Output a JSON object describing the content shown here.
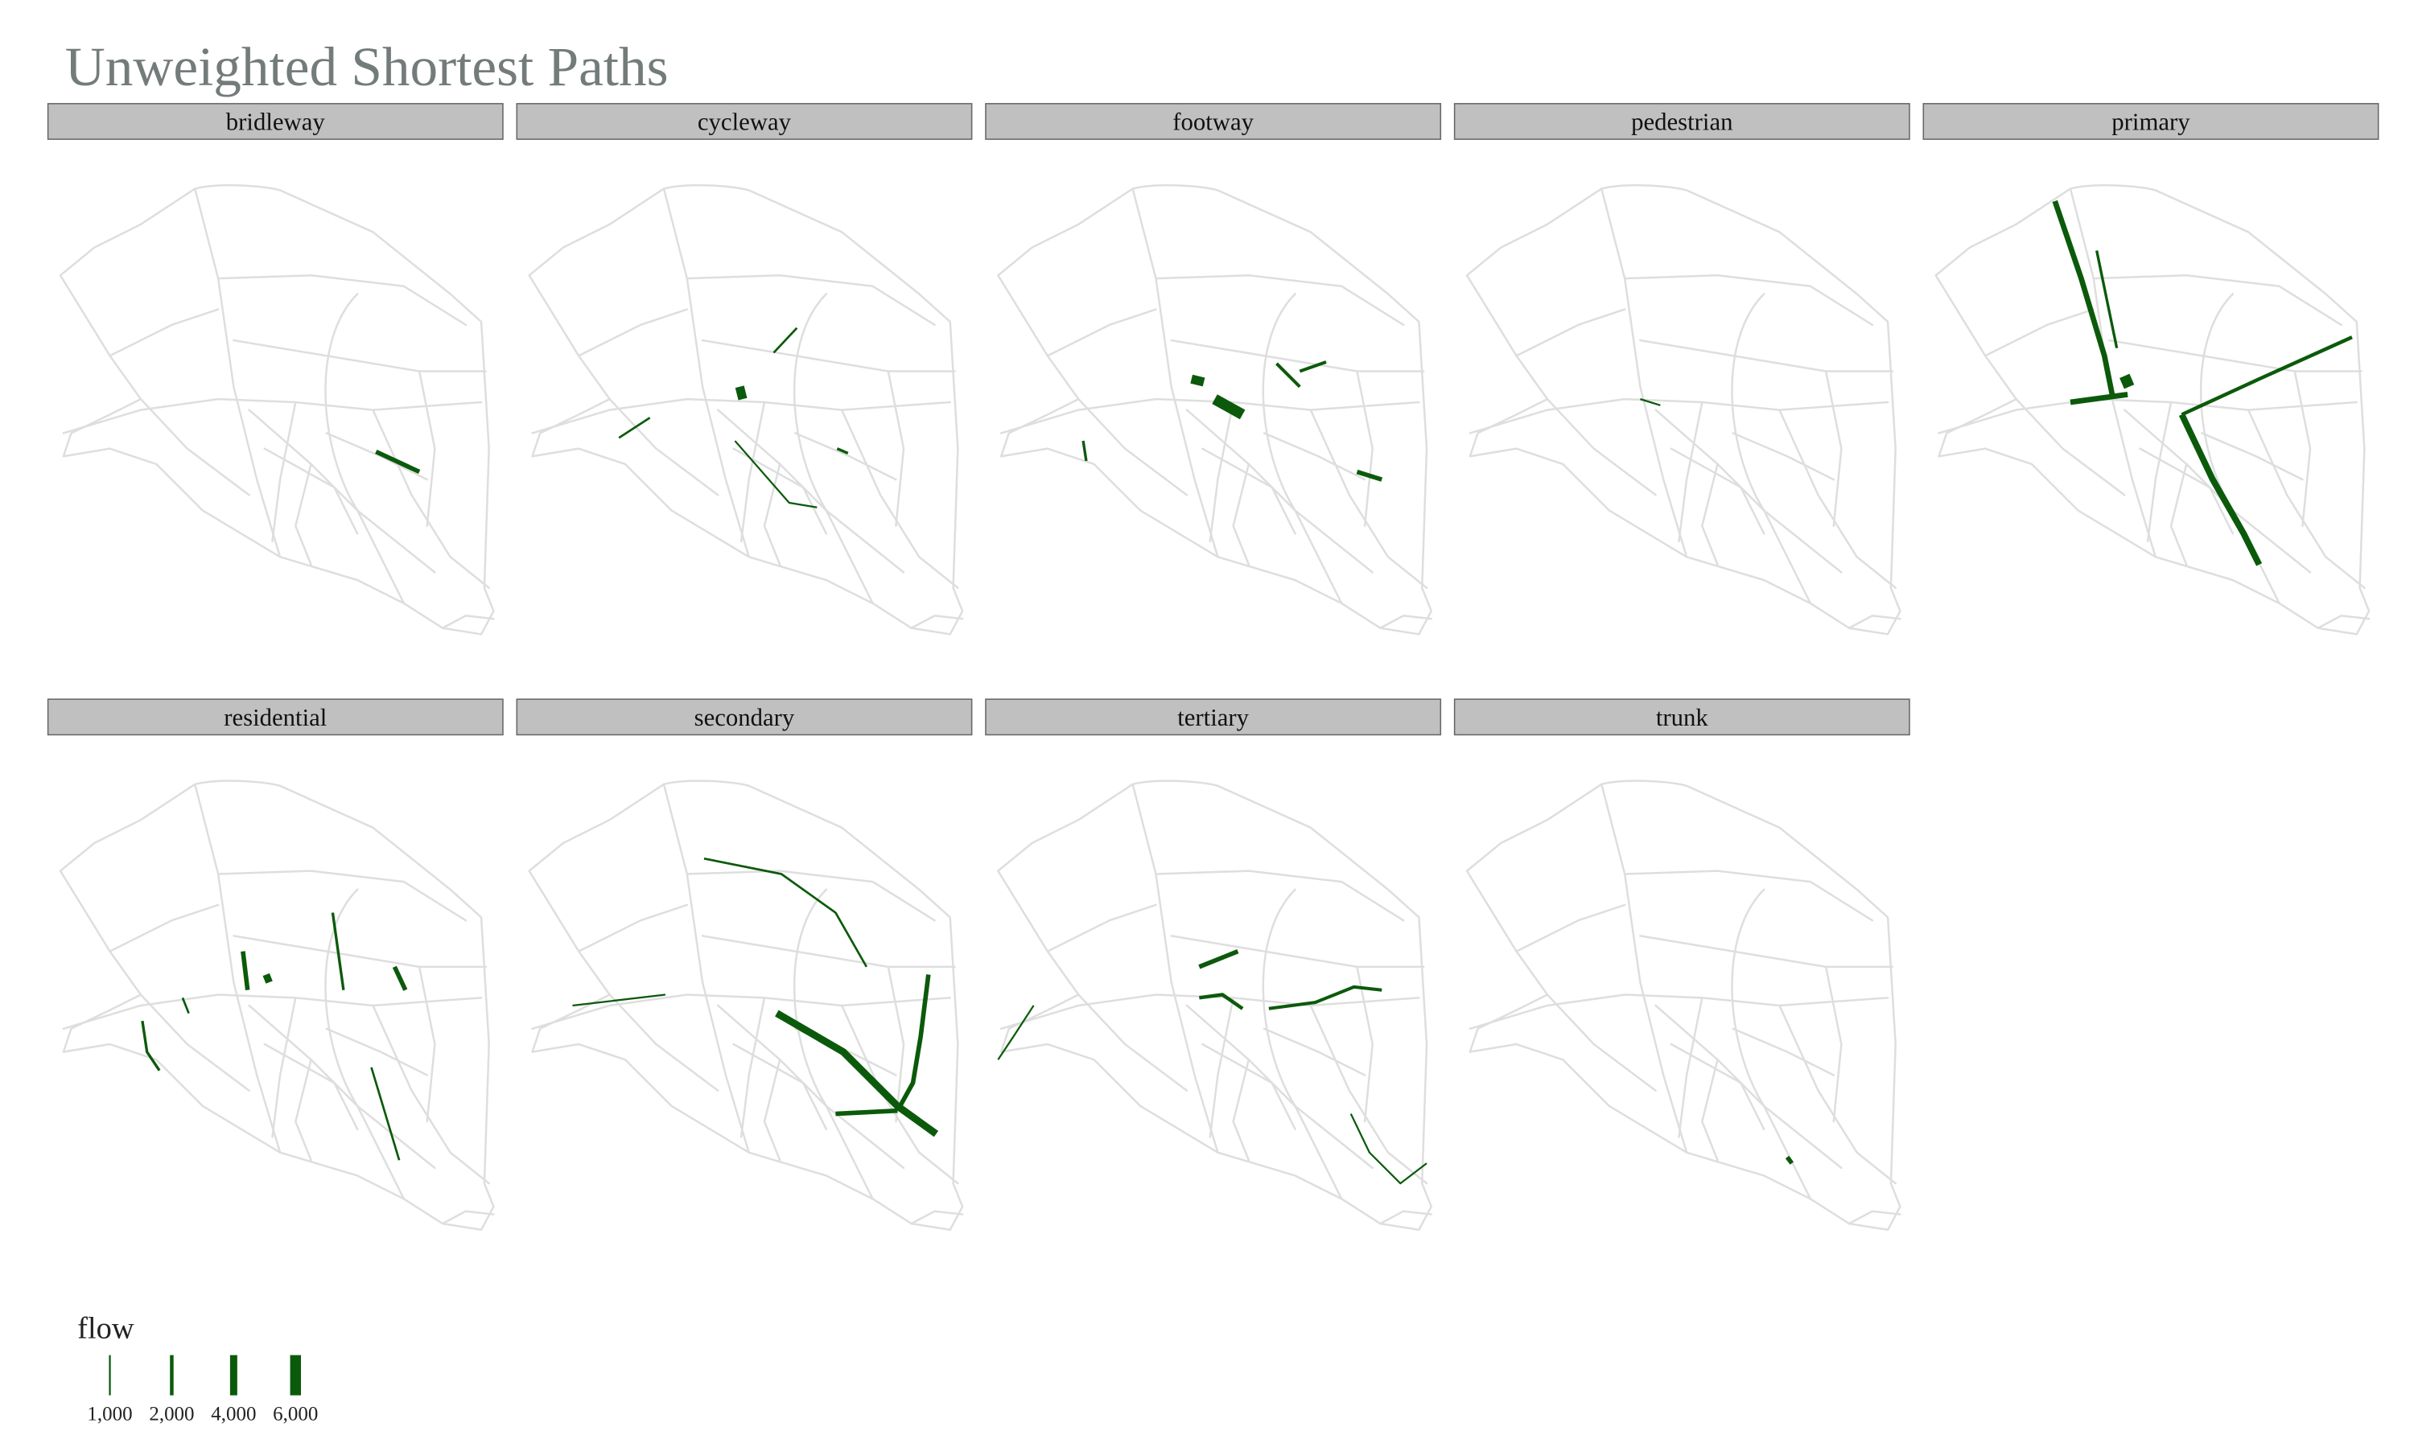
{
  "chart_data": {
    "type": "map",
    "title": "Unweighted Shortest Paths",
    "color": "#0b5a0b",
    "facets": [
      {
        "name": "bridleway",
        "flows": [
          2500
        ]
      },
      {
        "name": "cycleway",
        "flows": [
          5000,
          1200,
          1200,
          1000,
          1500
        ]
      },
      {
        "name": "footway",
        "flows": [
          5000,
          6000,
          1800,
          1800,
          2500,
          1500
        ]
      },
      {
        "name": "pedestrian",
        "flows": [
          1000
        ]
      },
      {
        "name": "primary",
        "flows": [
          3000,
          6000,
          3000,
          3500,
          2000,
          1500
        ]
      },
      {
        "name": "residential",
        "flows": [
          2500,
          4000,
          1500,
          2500,
          1500,
          1200,
          1200
        ]
      },
      {
        "name": "secondary",
        "flows": [
          4000,
          2500,
          1200,
          2500,
          1000
        ]
      },
      {
        "name": "tertiary",
        "flows": [
          2500,
          2000,
          1800,
          1000,
          1000
        ]
      },
      {
        "name": "trunk",
        "flows": [
          2500
        ]
      }
    ],
    "legend": {
      "title": "flow",
      "breaks": [
        {
          "value": 1000,
          "label": "1,000"
        },
        {
          "value": 2000,
          "label": "2,000"
        },
        {
          "value": 4000,
          "label": "4,000"
        },
        {
          "value": 6000,
          "label": "6,000"
        }
      ]
    }
  }
}
